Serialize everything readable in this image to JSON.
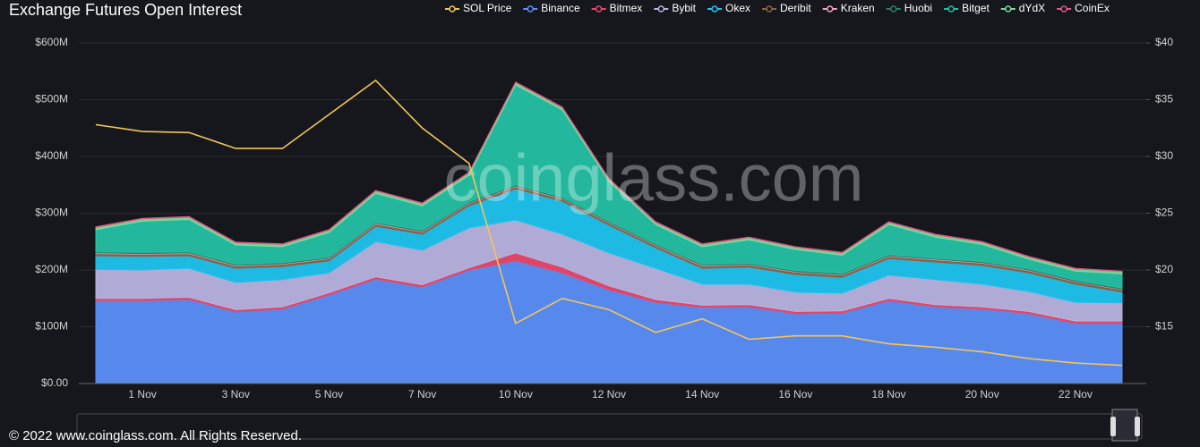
{
  "chart_data": {
    "type": "area",
    "title": "Exchange  Futures Open Interest",
    "watermark": "coinglass.com",
    "footer": "© 2022 www.coinglass.com. All Rights Reserved.",
    "legend": "top-right",
    "grid": true,
    "stacked": true,
    "categories": [
      null,
      "1 Nov",
      null,
      "3 Nov",
      null,
      "5 Nov",
      null,
      "7 Nov",
      null,
      "10 Nov",
      null,
      "12 Nov",
      null,
      "14 Nov",
      null,
      "16 Nov",
      null,
      "18 Nov",
      null,
      "20 Nov",
      null,
      "22 Nov",
      null
    ],
    "ylim": [
      0,
      600
    ],
    "yticks": [
      {
        "value": 0,
        "label": "$0.00"
      },
      {
        "value": 100,
        "label": "$100M"
      },
      {
        "value": 200,
        "label": "$200M"
      },
      {
        "value": 300,
        "label": "$300M"
      },
      {
        "value": 400,
        "label": "$400M"
      },
      {
        "value": 500,
        "label": "$500M"
      },
      {
        "value": 600,
        "label": "$600M"
      }
    ],
    "y2lim": [
      10,
      40
    ],
    "y2ticks": [
      {
        "value": 15,
        "label": "$15"
      },
      {
        "value": 20,
        "label": "$20"
      },
      {
        "value": 25,
        "label": "$25"
      },
      {
        "value": 30,
        "label": "$30"
      },
      {
        "value": 35,
        "label": "$35"
      },
      {
        "value": 40,
        "label": "$40"
      }
    ],
    "series": [
      {
        "name": "SOL Price",
        "color": "#f2c55c",
        "type": "line",
        "axis": "y2",
        "values": [
          32.8,
          32.2,
          32.1,
          30.7,
          30.7,
          33.7,
          36.7,
          32.5,
          29.4,
          15.3,
          17.5,
          16.5,
          14.5,
          15.7,
          13.9,
          14.2,
          14.2,
          13.5,
          13.2,
          12.8,
          12.2,
          11.8,
          11.6
        ]
      },
      {
        "name": "Binance",
        "color": "#5b8ff9",
        "values": [
          146,
          146,
          148,
          126,
          131,
          156,
          184,
          170,
          200,
          216,
          195,
          165,
          143,
          134,
          135,
          123,
          124,
          146,
          135,
          131,
          123,
          106,
          106
        ]
      },
      {
        "name": "Bitmex",
        "color": "#e8496b",
        "values": [
          4,
          4,
          4,
          4,
          4,
          4,
          4,
          4,
          4,
          14,
          10,
          7,
          5,
          4,
          4,
          4,
          4,
          4,
          4,
          4,
          4,
          4,
          4
        ]
      },
      {
        "name": "Bybit",
        "color": "#b8b3e0",
        "values": [
          51,
          50,
          51,
          48,
          48,
          35,
          62,
          61,
          70,
          58,
          58,
          58,
          55,
          37,
          36,
          34,
          31,
          41,
          44,
          40,
          35,
          33,
          32
        ]
      },
      {
        "name": "Okex",
        "color": "#1ec3ef",
        "values": [
          24,
          24,
          22,
          25,
          23,
          21,
          27,
          28,
          39,
          55,
          58,
          49,
          36,
          28,
          30,
          31,
          28,
          29,
          31,
          33,
          33,
          32,
          19
        ]
      },
      {
        "name": "Deribit",
        "color": "#8c6445",
        "values": [
          4,
          4,
          4,
          4,
          4,
          4,
          4,
          4,
          4,
          4,
          4,
          4,
          4,
          4,
          4,
          4,
          4,
          4,
          4,
          4,
          4,
          4,
          4
        ]
      },
      {
        "name": "Kraken",
        "color": "#f4a3c4",
        "values": [
          1,
          1,
          1,
          1,
          1,
          1,
          1,
          1,
          1,
          1,
          1,
          1,
          1,
          1,
          1,
          1,
          1,
          1,
          1,
          1,
          1,
          1,
          1
        ]
      },
      {
        "name": "Huobi",
        "color": "#2d7d6a",
        "values": [
          2,
          2,
          2,
          2,
          2,
          2,
          2,
          2,
          2,
          2,
          2,
          2,
          2,
          2,
          2,
          2,
          2,
          2,
          2,
          2,
          2,
          2,
          2
        ]
      },
      {
        "name": "Bitget",
        "color": "#24c1a4",
        "values": [
          39,
          55,
          57,
          34,
          28,
          43,
          51,
          43,
          47,
          176,
          154,
          70,
          34,
          31,
          41,
          37,
          32,
          53,
          37,
          30,
          17,
          16,
          25
        ]
      },
      {
        "name": "dYdX",
        "color": "#7fd99a",
        "values": [
          4,
          4,
          4,
          4,
          4,
          4,
          4,
          4,
          4,
          4,
          4,
          4,
          4,
          4,
          4,
          4,
          4,
          4,
          4,
          4,
          4,
          4,
          4
        ]
      },
      {
        "name": "CoinEx",
        "color": "#e05a8a",
        "values": [
          1,
          1,
          1,
          1,
          1,
          1,
          1,
          1,
          1,
          1,
          1,
          1,
          1,
          1,
          1,
          1,
          1,
          1,
          1,
          1,
          1,
          1,
          1
        ]
      }
    ]
  }
}
